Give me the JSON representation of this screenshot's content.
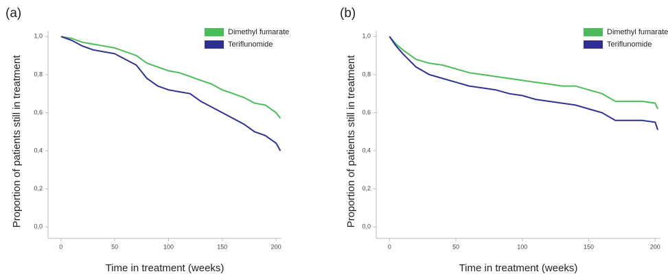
{
  "chart_data": [
    {
      "type": "line",
      "title": "(a)",
      "x_label": "Time in treatment (weeks)",
      "y_label": "Proportion of patients still in treatment",
      "x": [
        0,
        10,
        20,
        30,
        40,
        50,
        60,
        70,
        80,
        90,
        100,
        110,
        120,
        130,
        140,
        150,
        160,
        170,
        180,
        190,
        200,
        204
      ],
      "series": [
        {
          "name": "Dimethyl fumarate",
          "color": "#4cbb5a",
          "values": [
            1.0,
            0.99,
            0.97,
            0.96,
            0.95,
            0.94,
            0.92,
            0.9,
            0.86,
            0.84,
            0.82,
            0.81,
            0.79,
            0.77,
            0.75,
            0.72,
            0.7,
            0.68,
            0.65,
            0.64,
            0.6,
            0.57
          ]
        },
        {
          "name": "Teriflunomide",
          "color": "#2e3192",
          "values": [
            1.0,
            0.98,
            0.95,
            0.93,
            0.92,
            0.91,
            0.88,
            0.85,
            0.78,
            0.74,
            0.72,
            0.71,
            0.7,
            0.66,
            0.63,
            0.6,
            0.57,
            0.54,
            0.5,
            0.48,
            0.44,
            0.4
          ]
        }
      ],
      "xlim": [
        -12,
        205
      ],
      "xticks": [
        0,
        50,
        100,
        150,
        200
      ],
      "ylim": [
        -0.06,
        1.03
      ],
      "yticks": [
        {
          "value": 0.0,
          "label": "0,0"
        },
        {
          "value": 0.2,
          "label": "0,2"
        },
        {
          "value": 0.4,
          "label": "0,4"
        },
        {
          "value": 0.6,
          "label": "0,6"
        },
        {
          "value": 0.8,
          "label": "0,8"
        },
        {
          "value": 1.0,
          "label": "1,0"
        }
      ],
      "legend": "top-right"
    },
    {
      "type": "line",
      "title": "(b)",
      "x_label": "Time in treatment (weeks)",
      "y_label": "Proportion of patients still in treatment",
      "x": [
        0,
        5,
        10,
        20,
        30,
        40,
        50,
        60,
        70,
        80,
        90,
        100,
        110,
        120,
        130,
        140,
        150,
        160,
        170,
        180,
        190,
        200,
        202
      ],
      "series": [
        {
          "name": "Dimethyl fumarate",
          "color": "#4cbb5a",
          "values": [
            1.0,
            0.96,
            0.93,
            0.88,
            0.86,
            0.85,
            0.83,
            0.81,
            0.8,
            0.79,
            0.78,
            0.77,
            0.76,
            0.75,
            0.74,
            0.74,
            0.72,
            0.7,
            0.66,
            0.66,
            0.66,
            0.65,
            0.62
          ]
        },
        {
          "name": "Teriflunomide",
          "color": "#2e3192",
          "values": [
            1.0,
            0.95,
            0.91,
            0.84,
            0.8,
            0.78,
            0.76,
            0.74,
            0.73,
            0.72,
            0.7,
            0.69,
            0.67,
            0.66,
            0.65,
            0.64,
            0.62,
            0.6,
            0.56,
            0.56,
            0.56,
            0.55,
            0.51
          ]
        }
      ],
      "xlim": [
        -10,
        204
      ],
      "xticks": [
        0,
        50,
        100,
        150,
        200
      ],
      "ylim": [
        -0.06,
        1.03
      ],
      "yticks": [
        {
          "value": 0.0,
          "label": "0,0"
        },
        {
          "value": 0.2,
          "label": "0,2"
        },
        {
          "value": 0.4,
          "label": "0,4"
        },
        {
          "value": 0.6,
          "label": "0,6"
        },
        {
          "value": 0.8,
          "label": "0,8"
        },
        {
          "value": 1.0,
          "label": "1,0"
        }
      ],
      "legend": "top-right"
    }
  ]
}
